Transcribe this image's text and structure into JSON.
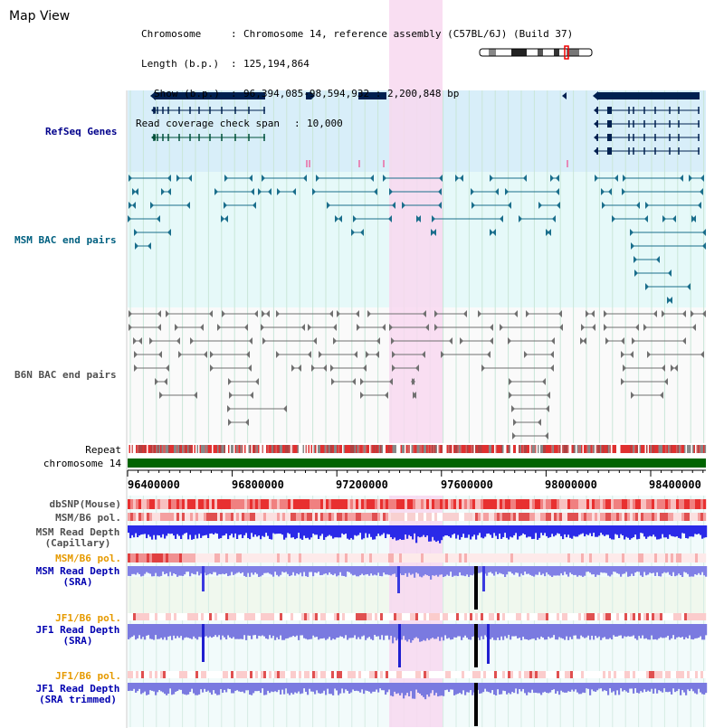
{
  "panel": {
    "title": "Map View"
  },
  "info": {
    "chromosome_key": "Chromosome",
    "chromosome_value": "Chromosome 14, reference assembly (C57BL/6J) (Build 37)",
    "length_key": "Length (b.p.)",
    "length_value": "125,194,864",
    "show_key": "Show (b.p.)",
    "show_value": "96,394,085-98,594,932 : 2,200,848 bp",
    "coverage_key": "Read coverage check span",
    "coverage_value": "10,000"
  },
  "tracks": {
    "refseq": "RefSeq Genes",
    "msm_bac": "MSM BAC end pairs",
    "b6n_bac": "B6N BAC end pairs",
    "repeat": "Repeat",
    "chromosome": "chromosome 14",
    "dbsnp": "dbSNP(Mouse)",
    "msm_b6_pol_1": "MSM/B6 pol.",
    "msm_read_cap_1": "MSM Read Depth",
    "msm_read_cap_2": "(Capillary)",
    "msm_b6_pol_2": "MSM/B6 pol.",
    "msm_read_sra_1": "MSM Read Depth",
    "msm_read_sra_2": "(SRA)",
    "jf1_b6_pol_1": "JF1/B6 pol.",
    "jf1_read_sra_1": "JF1 Read Depth",
    "jf1_read_sra_2": "(SRA)",
    "jf1_b6_pol_2": "JF1/B6 pol.",
    "jf1_read_trim_1": "JF1 Read Depth",
    "jf1_read_trim_2": "(SRA trimmed)"
  },
  "axis": {
    "ticks": [
      "96400000",
      "96800000",
      "97200000",
      "97600000",
      "98000000",
      "98400000"
    ]
  },
  "colors": {
    "refseq_label": "#00008b",
    "msm_label": "#006080",
    "b6n_label": "#505050",
    "pol_label": "#e69a00",
    "read_label": "#0000b0",
    "gene": "#002050",
    "msm_bac": "#1a6e8c",
    "b6n_bac": "#707070",
    "chromosome_bar": "#006400",
    "highlight": "#f8d8f0"
  }
}
